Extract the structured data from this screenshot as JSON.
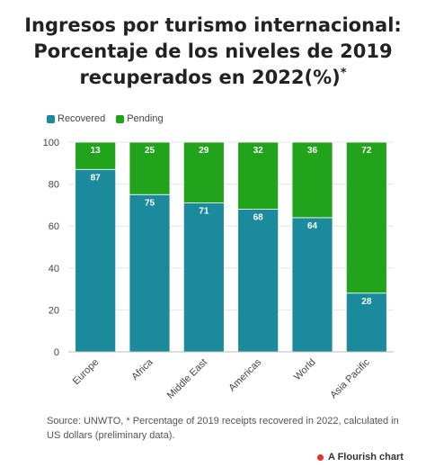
{
  "title": {
    "line1": "Ingresos por turismo internacional:",
    "line2": "Porcentaje de los niveles de 2019",
    "line3": "recuperados en 2022(%)",
    "footnote_mark": "*"
  },
  "legend": [
    {
      "label": "Recovered",
      "color": "#1a8a9c"
    },
    {
      "label": "Pending",
      "color": "#21a31c"
    }
  ],
  "chart_data": {
    "type": "bar",
    "stacked": true,
    "categories": [
      "Europe",
      "Africa",
      "Middle East",
      "Americas",
      "World",
      "Asia Pacific"
    ],
    "series": [
      {
        "name": "Recovered",
        "color": "#1a8a9c",
        "values": [
          87,
          75,
          71,
          68,
          64,
          28
        ]
      },
      {
        "name": "Pending",
        "color": "#21a31c",
        "values": [
          13,
          25,
          29,
          32,
          36,
          72
        ]
      }
    ],
    "ylim": [
      0,
      100
    ],
    "yticks": [
      0,
      20,
      40,
      60,
      80,
      100
    ],
    "grid": true,
    "legend_position": "top-left",
    "xlabel": "",
    "ylabel": ""
  },
  "source": "Source: UNWTO, * Percentage of 2019 receipts recovered in 2022, calculated in US dollars (preliminary data).",
  "credit": {
    "label": "A Flourish chart",
    "color": "#e0352b"
  }
}
